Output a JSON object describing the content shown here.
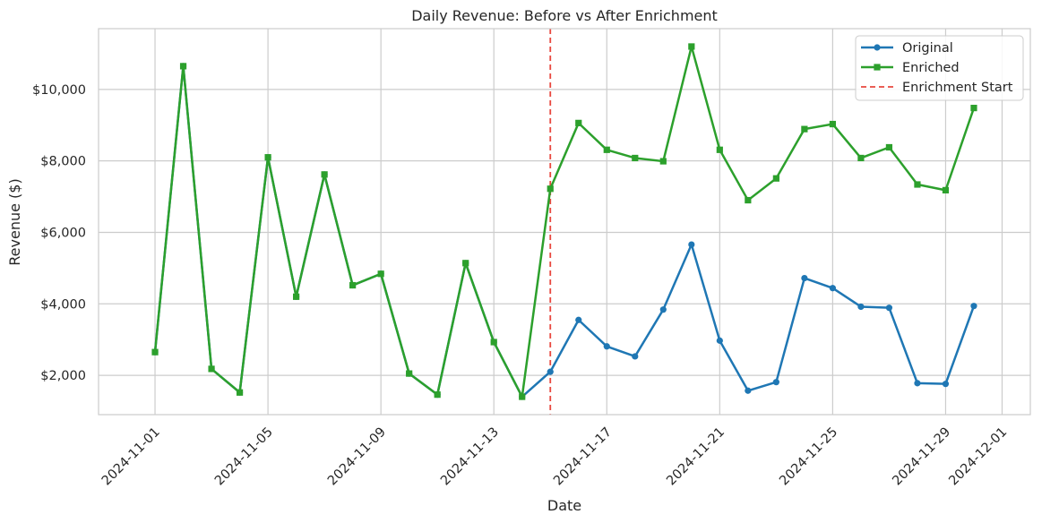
{
  "chart_data": {
    "type": "line",
    "title": "Daily Revenue: Before vs After Enrichment",
    "xlabel": "Date",
    "ylabel": "Revenue ($)",
    "x": [
      "2024-11-01",
      "2024-11-02",
      "2024-11-03",
      "2024-11-04",
      "2024-11-05",
      "2024-11-06",
      "2024-11-07",
      "2024-11-08",
      "2024-11-09",
      "2024-11-10",
      "2024-11-11",
      "2024-11-12",
      "2024-11-13",
      "2024-11-14",
      "2024-11-15",
      "2024-11-16",
      "2024-11-17",
      "2024-11-18",
      "2024-11-19",
      "2024-11-20",
      "2024-11-21",
      "2024-11-22",
      "2024-11-23",
      "2024-11-24",
      "2024-11-25",
      "2024-11-26",
      "2024-11-27",
      "2024-11-28",
      "2024-11-29",
      "2024-11-30"
    ],
    "series": [
      {
        "name": "Original",
        "color": "#1f77b4",
        "marker": "circle",
        "values": [
          2650,
          10650,
          2180,
          1520,
          8100,
          4200,
          7620,
          4520,
          4840,
          2050,
          1460,
          5140,
          2930,
          1400,
          2100,
          3550,
          2810,
          2530,
          3840,
          5660,
          2970,
          1570,
          1810,
          4720,
          4440,
          3920,
          3890,
          1780,
          1760,
          3940
        ]
      },
      {
        "name": "Enriched",
        "color": "#2ca02c",
        "marker": "square",
        "values": [
          2650,
          10650,
          2180,
          1520,
          8100,
          4200,
          7620,
          4520,
          4840,
          2050,
          1460,
          5140,
          2930,
          1400,
          7220,
          9060,
          8310,
          8080,
          7990,
          11200,
          8310,
          6900,
          7510,
          8890,
          9030,
          8080,
          8380,
          7340,
          7180,
          9480
        ]
      }
    ],
    "annotations": [
      {
        "type": "vline",
        "label": "Enrichment Start",
        "x": "2024-11-15",
        "color": "#e8483f",
        "style": "dashed"
      }
    ],
    "xticks": [
      "2024-11-01",
      "2024-11-05",
      "2024-11-09",
      "2024-11-13",
      "2024-11-17",
      "2024-11-21",
      "2024-11-25",
      "2024-11-29",
      "2024-12-01"
    ],
    "yticks": [
      2000,
      4000,
      6000,
      8000,
      10000
    ],
    "ytick_labels": [
      "$2,000",
      "$4,000",
      "$6,000",
      "$8,000",
      "$10,000"
    ],
    "xlim": [
      "2024-10-30",
      "2024-12-02"
    ],
    "ylim": [
      900,
      11700
    ],
    "grid": true,
    "legend_position": "top-right"
  }
}
